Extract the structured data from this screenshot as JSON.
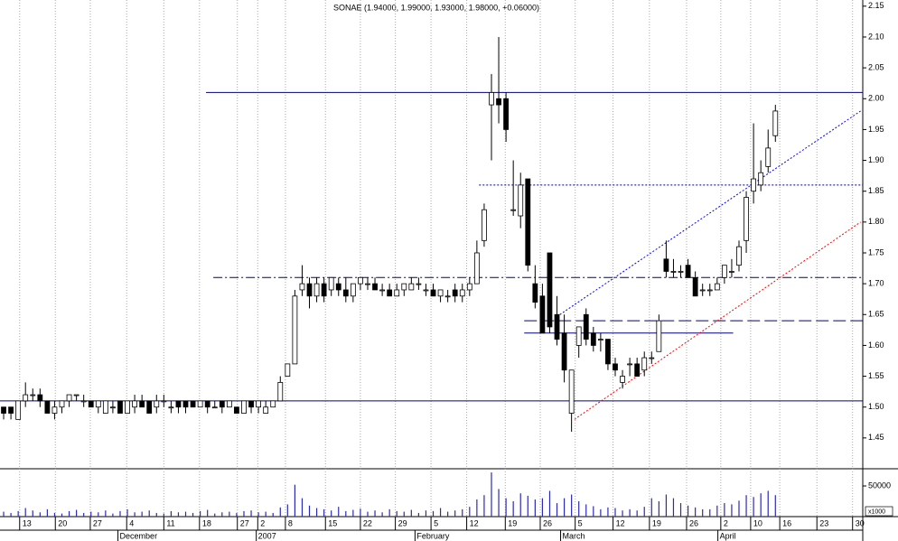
{
  "chart_data": {
    "type": "candlestick",
    "title": "SONAE (1.94000, 1.99000, 1.93000, 1.98000, +0.06000)",
    "open": [
      1.5,
      1.5,
      1.48,
      1.51,
      1.52,
      1.52,
      1.51,
      1.49,
      1.5,
      1.51,
      1.52,
      1.51,
      1.51,
      1.5,
      1.49,
      1.5,
      1.51,
      1.49,
      1.5,
      1.51,
      1.51,
      1.5,
      1.51,
      1.5,
      1.51,
      1.51,
      1.51,
      1.5,
      1.51,
      1.5,
      1.51,
      1.5,
      1.5,
      1.49,
      1.51,
      1.5,
      1.49,
      1.5,
      1.51,
      1.55,
      1.57,
      1.69,
      1.7,
      1.68,
      1.7,
      1.69,
      1.7,
      1.69,
      1.68,
      1.7,
      1.7,
      1.7,
      1.69,
      1.69,
      1.68,
      1.69,
      1.69,
      1.7,
      1.69,
      1.69,
      1.68,
      1.68,
      1.69,
      1.68,
      1.69,
      1.7,
      1.77,
      1.99,
      2.0,
      2.0,
      1.82,
      1.81,
      1.87,
      1.7,
      1.68,
      1.75,
      1.65,
      1.62,
      1.49,
      1.6,
      1.65,
      1.62,
      1.61,
      1.61,
      1.57,
      1.54,
      1.57,
      1.57,
      1.56,
      1.58,
      1.59,
      1.74,
      1.72,
      1.72,
      1.73,
      1.71,
      1.69,
      1.69,
      1.69,
      1.71,
      1.72,
      1.73,
      1.77,
      1.85,
      1.86,
      1.89,
      1.94
    ],
    "high": [
      1.5,
      1.5,
      1.51,
      1.54,
      1.53,
      1.53,
      1.51,
      1.51,
      1.51,
      1.52,
      1.52,
      1.52,
      1.51,
      1.51,
      1.51,
      1.51,
      1.51,
      1.51,
      1.52,
      1.52,
      1.51,
      1.52,
      1.52,
      1.51,
      1.51,
      1.51,
      1.51,
      1.51,
      1.51,
      1.51,
      1.51,
      1.51,
      1.5,
      1.51,
      1.51,
      1.51,
      1.51,
      1.51,
      1.55,
      1.57,
      1.69,
      1.73,
      1.71,
      1.71,
      1.71,
      1.71,
      1.71,
      1.71,
      1.7,
      1.71,
      1.71,
      1.71,
      1.7,
      1.7,
      1.7,
      1.7,
      1.71,
      1.71,
      1.7,
      1.7,
      1.69,
      1.69,
      1.7,
      1.7,
      1.71,
      1.77,
      1.83,
      2.04,
      2.1,
      2.01,
      1.9,
      1.88,
      1.87,
      1.73,
      1.7,
      1.75,
      1.68,
      1.65,
      1.56,
      1.63,
      1.66,
      1.63,
      1.62,
      1.61,
      1.58,
      1.56,
      1.58,
      1.58,
      1.59,
      1.59,
      1.65,
      1.77,
      1.74,
      1.73,
      1.74,
      1.72,
      1.7,
      1.7,
      1.71,
      1.73,
      1.74,
      1.77,
      1.85,
      1.96,
      1.9,
      1.95,
      1.99
    ],
    "low": [
      1.48,
      1.48,
      1.48,
      1.5,
      1.51,
      1.5,
      1.49,
      1.48,
      1.49,
      1.5,
      1.51,
      1.5,
      1.5,
      1.49,
      1.49,
      1.49,
      1.49,
      1.49,
      1.49,
      1.5,
      1.49,
      1.49,
      1.5,
      1.49,
      1.49,
      1.49,
      1.5,
      1.5,
      1.49,
      1.5,
      1.49,
      1.5,
      1.49,
      1.49,
      1.49,
      1.49,
      1.49,
      1.5,
      1.51,
      1.55,
      1.57,
      1.68,
      1.66,
      1.67,
      1.67,
      1.68,
      1.68,
      1.67,
      1.67,
      1.69,
      1.69,
      1.69,
      1.68,
      1.68,
      1.68,
      1.68,
      1.69,
      1.69,
      1.68,
      1.68,
      1.67,
      1.67,
      1.67,
      1.67,
      1.68,
      1.7,
      1.76,
      1.9,
      1.96,
      1.93,
      1.81,
      1.79,
      1.72,
      1.66,
      1.62,
      1.62,
      1.6,
      1.54,
      1.46,
      1.58,
      1.6,
      1.59,
      1.59,
      1.56,
      1.55,
      1.53,
      1.55,
      1.55,
      1.55,
      1.57,
      1.59,
      1.71,
      1.71,
      1.71,
      1.71,
      1.68,
      1.68,
      1.68,
      1.69,
      1.7,
      1.71,
      1.72,
      1.75,
      1.83,
      1.85,
      1.88,
      1.93
    ],
    "close": [
      1.49,
      1.49,
      1.51,
      1.52,
      1.52,
      1.51,
      1.49,
      1.5,
      1.51,
      1.52,
      1.52,
      1.51,
      1.5,
      1.51,
      1.51,
      1.5,
      1.49,
      1.51,
      1.51,
      1.5,
      1.49,
      1.51,
      1.51,
      1.5,
      1.5,
      1.5,
      1.5,
      1.51,
      1.5,
      1.5,
      1.5,
      1.51,
      1.49,
      1.51,
      1.5,
      1.51,
      1.5,
      1.51,
      1.54,
      1.57,
      1.68,
      1.7,
      1.68,
      1.7,
      1.68,
      1.71,
      1.69,
      1.68,
      1.7,
      1.71,
      1.7,
      1.69,
      1.69,
      1.68,
      1.69,
      1.7,
      1.7,
      1.7,
      1.69,
      1.68,
      1.69,
      1.68,
      1.68,
      1.69,
      1.7,
      1.75,
      1.82,
      2.01,
      1.99,
      1.95,
      1.82,
      1.86,
      1.73,
      1.67,
      1.62,
      1.63,
      1.61,
      1.56,
      1.56,
      1.63,
      1.61,
      1.6,
      1.61,
      1.57,
      1.56,
      1.55,
      1.57,
      1.55,
      1.58,
      1.58,
      1.64,
      1.72,
      1.72,
      1.72,
      1.71,
      1.68,
      1.69,
      1.69,
      1.7,
      1.73,
      1.72,
      1.76,
      1.84,
      1.87,
      1.88,
      1.92,
      1.98
    ],
    "volume": [
      8000,
      6000,
      9000,
      14000,
      10000,
      7000,
      12000,
      6000,
      5000,
      9000,
      11000,
      6000,
      8000,
      7000,
      10000,
      5000,
      9000,
      12000,
      7000,
      8000,
      10000,
      6000,
      5000,
      9000,
      7000,
      8000,
      6000,
      9000,
      11000,
      5000,
      7000,
      8000,
      6000,
      9000,
      10000,
      7000,
      8000,
      6000,
      15000,
      20000,
      52000,
      30000,
      18000,
      14000,
      12000,
      10000,
      16000,
      9000,
      11000,
      13000,
      8000,
      10000,
      7000,
      12000,
      9000,
      8000,
      11000,
      6000,
      10000,
      9000,
      14000,
      8000,
      10000,
      12000,
      16000,
      28000,
      35000,
      72000,
      45000,
      30000,
      25000,
      38000,
      34000,
      28000,
      30000,
      42000,
      22000,
      30000,
      36000,
      25000,
      20000,
      17000,
      12000,
      15000,
      14000,
      10000,
      12000,
      10000,
      16000,
      30000,
      25000,
      36000,
      30000,
      22000,
      18000,
      15000,
      12000,
      12000,
      18000,
      22000,
      20000,
      26000,
      35000,
      32000,
      38000,
      42000,
      35000
    ],
    "up_color": "#ffffff",
    "down_color": "#000000",
    "volume_color": "#2a2ab8",
    "xlim": [
      0,
      118.5
    ],
    "ylim": [
      1.4,
      2.16
    ],
    "yticks": [
      {
        "value": 1.45,
        "label": "1.45"
      },
      {
        "value": 1.5,
        "label": "1.50"
      },
      {
        "value": 1.55,
        "label": "1.55"
      },
      {
        "value": 1.6,
        "label": "1.60"
      },
      {
        "value": 1.65,
        "label": "1.65"
      },
      {
        "value": 1.7,
        "label": "1.70"
      },
      {
        "value": 1.75,
        "label": "1.75"
      },
      {
        "value": 1.8,
        "label": "1.80"
      },
      {
        "value": 1.85,
        "label": "1.85"
      },
      {
        "value": 1.9,
        "label": "1.90"
      },
      {
        "value": 1.95,
        "label": "1.95"
      },
      {
        "value": 2.0,
        "label": "2.00"
      },
      {
        "value": 2.05,
        "label": "2.05"
      },
      {
        "value": 2.1,
        "label": "2.10"
      },
      {
        "value": 2.15,
        "label": "2.15"
      }
    ],
    "xticks": [
      {
        "value": 2.7,
        "label": "13"
      },
      {
        "value": 7.6,
        "label": "20"
      },
      {
        "value": 12.4,
        "label": "27"
      },
      {
        "value": 17.4,
        "label": "4"
      },
      {
        "value": 22.5,
        "label": "11"
      },
      {
        "value": 27.4,
        "label": "18"
      },
      {
        "value": 32.6,
        "label": "27"
      },
      {
        "value": 35.4,
        "label": "2"
      },
      {
        "value": 39.2,
        "label": "8"
      },
      {
        "value": 44.7,
        "label": "15"
      },
      {
        "value": 49.5,
        "label": "22"
      },
      {
        "value": 54.3,
        "label": "29"
      },
      {
        "value": 59.2,
        "label": "5"
      },
      {
        "value": 64.1,
        "label": "12"
      },
      {
        "value": 69.4,
        "label": "19"
      },
      {
        "value": 74.2,
        "label": "26"
      },
      {
        "value": 79,
        "label": "5"
      },
      {
        "value": 84.2,
        "label": "12"
      },
      {
        "value": 89.2,
        "label": "19"
      },
      {
        "value": 94.3,
        "label": "26"
      },
      {
        "value": 99,
        "label": "2"
      },
      {
        "value": 103.1,
        "label": "10"
      },
      {
        "value": 107.1,
        "label": "16"
      },
      {
        "value": 112.2,
        "label": "23"
      },
      {
        "value": 117.1,
        "label": "30"
      }
    ],
    "months": [
      {
        "value": 16.2,
        "label": "December"
      },
      {
        "value": 35.2,
        "label": "2007"
      },
      {
        "value": 57,
        "label": "February"
      },
      {
        "value": 77,
        "label": "March"
      },
      {
        "value": 98.6,
        "label": "April"
      }
    ],
    "volume_lim": [
      0,
      78000
    ],
    "volume_ticks": [
      50000
    ],
    "volume_unit": "x1000",
    "grid": true,
    "lines": [
      {
        "x": [
          28.3,
          118.5
        ],
        "y": [
          2.01,
          2.01
        ],
        "color": "#000080",
        "style": "solid"
      },
      {
        "x": [
          0,
          118.5
        ],
        "y": [
          1.51,
          1.51
        ],
        "color": "#000080",
        "style": "solid"
      },
      {
        "x": [
          65.8,
          118.5
        ],
        "y": [
          1.86,
          1.86
        ],
        "color": "#000080",
        "style": "dotted"
      },
      {
        "x": [
          29.3,
          118.5
        ],
        "y": [
          1.71,
          1.71
        ],
        "color": "#000080",
        "style": "dashdot"
      },
      {
        "x": [
          72,
          118.5
        ],
        "y": [
          1.64,
          1.64
        ],
        "color": "#000080",
        "style": "dashed"
      },
      {
        "x": [
          72,
          100.7
        ],
        "y": [
          1.62,
          1.62
        ],
        "color": "#000080",
        "style": "solid"
      },
      {
        "x": [
          76.9,
          118.2
        ],
        "y": [
          1.65,
          1.98
        ],
        "color": "#0000ff",
        "style": "dotted"
      },
      {
        "x": [
          78.9,
          118.2
        ],
        "y": [
          1.48,
          1.8
        ],
        "color": "#ff0000",
        "style": "dotted"
      }
    ]
  }
}
